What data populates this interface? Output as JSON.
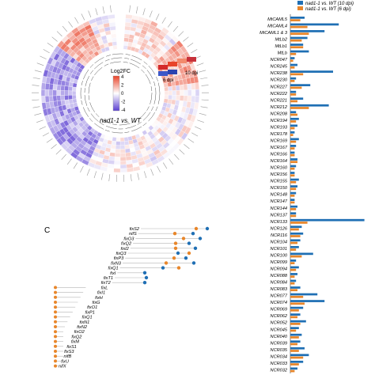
{
  "chart_data": [
    {
      "type": "heatmap",
      "subtype": "circular",
      "center_label": "nad1-1 vs. WT",
      "legend": {
        "title": "Log2FC",
        "ticks": [
          "4",
          "2",
          "0",
          "-2",
          "-4"
        ]
      },
      "ring_labels": [
        "6 dpi",
        "10 dpi"
      ],
      "colors": {
        "high": "#e8442a",
        "low": "#5b3fd1",
        "mid": "#ffffff"
      }
    },
    {
      "type": "bar",
      "orientation": "horizontal",
      "legend": [
        {
          "name": "nad1-1 vs. WT (10 dpi)",
          "color": "#1f6fb4"
        },
        {
          "name": "nad1-1 vs. WT (6 dpi)",
          "color": "#e8862a"
        }
      ],
      "categories": [
        "MtCAML5",
        "MtCAML4",
        "MtCAML1 & 3",
        "MtLb2",
        "MtLb1",
        "MtLb",
        "NCR047",
        "NCR245",
        "NCR238",
        "NCR230",
        "NCR227",
        "NCR222",
        "NCR221",
        "NCR212",
        "NCR208",
        "NCR194",
        "NCR193",
        "NCR178",
        "NCR169",
        "NCR167",
        "NCR166",
        "NCR164",
        "NCR160",
        "NCR156",
        "NCR155",
        "NCR150",
        "NCR148",
        "NCR147",
        "NCR144",
        "NCR137",
        "NCR133",
        "NCR126",
        "NCR116",
        "NCR104",
        "NCR101",
        "NCR100",
        "NCR099",
        "NCR094",
        "NCR088",
        "NCR084",
        "NCR083",
        "NCR077",
        "NCR074",
        "NCR069",
        "NCR062",
        "NCR052",
        "NCR045",
        "NCR040",
        "NCR039",
        "NCR035",
        "NCR034",
        "NCR033",
        "NCR032"
      ],
      "series": [
        {
          "name": "nad1-1 vs. WT (10 dpi)",
          "values": [
            1.0,
            3.4,
            2.4,
            1.2,
            0.9,
            1.3,
            0.3,
            0.5,
            3.0,
            0.4,
            1.4,
            0.4,
            0.9,
            2.7,
            0.4,
            0.6,
            0.5,
            0.3,
            0.6,
            0.4,
            0.3,
            0.5,
            0.4,
            0.3,
            0.6,
            0.5,
            0.4,
            0.3,
            0.5,
            0.4,
            5.2,
            0.8,
            0.9,
            0.7,
            0.6,
            1.6,
            0.4,
            0.6,
            0.5,
            0.4,
            0.7,
            1.9,
            2.4,
            0.9,
            0.7,
            1.1,
            0.6,
            0.8,
            0.7,
            1.0,
            1.3,
            0.9,
            0.5
          ]
        },
        {
          "name": "nad1-1 vs. WT (6 dpi)",
          "values": [
            0.7,
            1.2,
            1.3,
            0.8,
            0.9,
            0.4,
            0.2,
            0.3,
            0.9,
            0.3,
            0.8,
            0.4,
            0.5,
            1.3,
            0.5,
            0.4,
            0.3,
            0.2,
            0.4,
            0.3,
            0.3,
            0.5,
            0.3,
            0.3,
            0.4,
            0.4,
            0.3,
            0.3,
            0.4,
            0.4,
            1.2,
            0.6,
            0.7,
            0.5,
            0.4,
            0.8,
            0.3,
            0.4,
            0.3,
            0.3,
            0.5,
            0.9,
            1.0,
            0.6,
            0.5,
            0.7,
            0.4,
            0.6,
            0.5,
            0.6,
            0.9,
            0.6,
            0.3
          ]
        }
      ]
    },
    {
      "type": "dumbbell",
      "panel_label": "C",
      "categories": [
        "fixS2",
        "nifS",
        "fixO3",
        "fixQ2",
        "fixI2",
        "fixQ3",
        "fixP3",
        "fixN3",
        "fixQ1",
        "fixI",
        "fixT1",
        "fixT2",
        "fixL",
        "fixI1",
        "fixH",
        "fixG",
        "fixO1",
        "fixP1",
        "fixQ1",
        "fixN1",
        "fixN2",
        "fixO2",
        "fixQ2",
        "fixM",
        "fixS1",
        "fixS3",
        "nifB",
        "fixU",
        "nifX"
      ],
      "series": [
        {
          "name": "10 dpi",
          "color": "#1f6fb4",
          "values": [
            262,
            244,
            253,
            239,
            247,
            225,
            235,
            245,
            206,
            183,
            185,
            183,
            0,
            0,
            0,
            0,
            0,
            0,
            0,
            0,
            0,
            0,
            0,
            0,
            0,
            0,
            0,
            0,
            0
          ]
        },
        {
          "name": "6 dpi",
          "color": "#e8862a",
          "values": [
            248,
            221,
            232,
            222,
            222,
            239,
            220,
            210,
            226,
            0,
            0,
            0,
            0,
            0,
            0,
            0,
            0,
            0,
            0,
            0,
            0,
            0,
            0,
            0,
            0,
            0,
            0,
            0,
            0
          ]
        }
      ]
    }
  ]
}
